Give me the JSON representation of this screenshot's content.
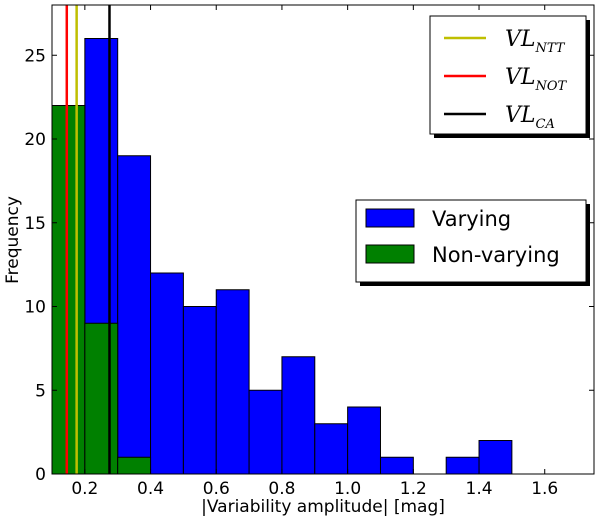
{
  "chart_data": {
    "type": "histogram",
    "title": "",
    "xlabel": "|Variability amplitude| [mag]",
    "ylabel": "Frequency",
    "xlim": [
      0.1,
      1.75
    ],
    "ylim": [
      0,
      28
    ],
    "xticks": [
      0.2,
      0.4,
      0.6,
      0.8,
      1.0,
      1.2,
      1.4,
      1.6
    ],
    "xtick_labels": [
      "0.2",
      "0.4",
      "0.6",
      "0.8",
      "1.0",
      "1.2",
      "1.4",
      "1.6"
    ],
    "yticks": [
      0,
      5,
      10,
      15,
      20,
      25
    ],
    "ytick_labels": [
      "0",
      "5",
      "10",
      "15",
      "20",
      "25"
    ],
    "grid": false,
    "series": [
      {
        "name": "Varying",
        "color": "#0000ff",
        "bins": [
          {
            "x0": 0.1,
            "x1": 0.2,
            "count": 22
          },
          {
            "x0": 0.2,
            "x1": 0.3,
            "count": 26
          },
          {
            "x0": 0.3,
            "x1": 0.4,
            "count": 19
          },
          {
            "x0": 0.4,
            "x1": 0.5,
            "count": 12
          },
          {
            "x0": 0.5,
            "x1": 0.6,
            "count": 10
          },
          {
            "x0": 0.6,
            "x1": 0.7,
            "count": 11
          },
          {
            "x0": 0.7,
            "x1": 0.8,
            "count": 5
          },
          {
            "x0": 0.8,
            "x1": 0.9,
            "count": 7
          },
          {
            "x0": 0.9,
            "x1": 1.0,
            "count": 3
          },
          {
            "x0": 1.0,
            "x1": 1.1,
            "count": 4
          },
          {
            "x0": 1.1,
            "x1": 1.2,
            "count": 1
          },
          {
            "x0": 1.2,
            "x1": 1.3,
            "count": 0
          },
          {
            "x0": 1.3,
            "x1": 1.4,
            "count": 1
          },
          {
            "x0": 1.4,
            "x1": 1.5,
            "count": 2
          }
        ]
      },
      {
        "name": "Non-varying",
        "color": "#008000",
        "bins": [
          {
            "x0": 0.1,
            "x1": 0.2,
            "count": 22
          },
          {
            "x0": 0.2,
            "x1": 0.3,
            "count": 9
          },
          {
            "x0": 0.3,
            "x1": 0.4,
            "count": 1
          }
        ]
      }
    ],
    "vlines": [
      {
        "name": "VL",
        "sub": "NTT",
        "x": 0.175,
        "color": "#bfbf00"
      },
      {
        "name": "VL",
        "sub": "NOT",
        "x": 0.145,
        "color": "#ff0000"
      },
      {
        "name": "VL",
        "sub": "CA",
        "x": 0.275,
        "color": "#000000"
      }
    ],
    "legends": {
      "lines_position": "top-right",
      "bars_position": "center-right"
    }
  }
}
